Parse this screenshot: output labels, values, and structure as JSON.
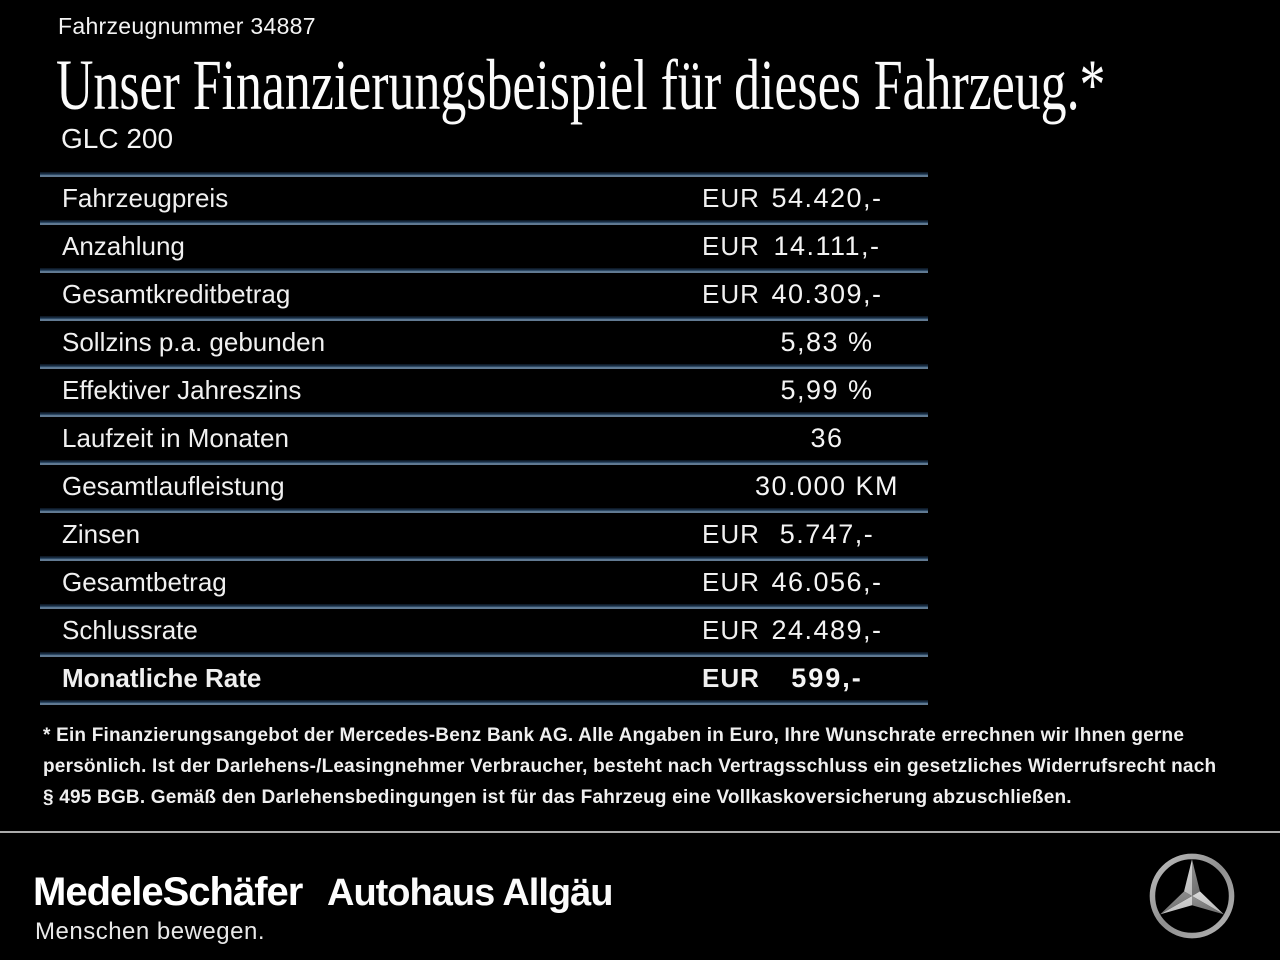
{
  "header": {
    "vehicle_number": "Fahrzeugnummer 34887",
    "title": "Unser Finanzierungsbeispiel für dieses Fahrzeug.*",
    "model": "GLC 200"
  },
  "table": {
    "rows": [
      {
        "label": "Fahrzeugpreis",
        "currency": "EUR",
        "value": "54.420,-",
        "bold": false
      },
      {
        "label": "Anzahlung",
        "currency": "EUR",
        "value": "14.111,-",
        "bold": false
      },
      {
        "label": "Gesamtkreditbetrag",
        "currency": "EUR",
        "value": "40.309,-",
        "bold": false
      },
      {
        "label": "Sollzins p.a. gebunden",
        "currency": "",
        "value": "5,83 %",
        "bold": false
      },
      {
        "label": "Effektiver Jahreszins",
        "currency": "",
        "value": "5,99 %",
        "bold": false
      },
      {
        "label": "Laufzeit in Monaten",
        "currency": "",
        "value": "36",
        "bold": false
      },
      {
        "label": "Gesamtlaufleistung",
        "currency": "",
        "value": "30.000 KM",
        "bold": false
      },
      {
        "label": "Zinsen",
        "currency": "EUR",
        "value": "5.747,-",
        "bold": false
      },
      {
        "label": "Gesamtbetrag",
        "currency": "EUR",
        "value": "46.056,-",
        "bold": false
      },
      {
        "label": "Schlussrate",
        "currency": "EUR",
        "value": "24.489,-",
        "bold": false
      },
      {
        "label": "Monatliche Rate",
        "currency": "EUR",
        "value": "599,-",
        "bold": true
      }
    ]
  },
  "footnote": {
    "lines": [
      "* Ein Finanzierungsangebot der Mercedes-Benz Bank AG. Alle Angaben in Euro, Ihre Wunschrate errechnen wir Ihnen gerne",
      "persönlich. Ist der Darlehens-/Leasingnehmer Verbraucher, besteht nach Vertragsschluss ein gesetzliches Widerrufsrecht nach",
      "§ 495 BGB. Gemäß den Darlehensbedingungen ist für das Fahrzeug eine Vollkaskoversicherung abzuschließen."
    ]
  },
  "footer": {
    "dealer_logo": "MedeleSchäfer",
    "dealer_tagline": "Menschen bewegen.",
    "dealer_logo_2": "Autohaus Allgäu",
    "brand_icon": "mercedes-benz-star-icon"
  },
  "colors": {
    "background": "#000000",
    "text": "#f2f2f2",
    "separator_light": "#7b93a9",
    "separator_dark": "#16283c",
    "footer_divider": "#ababab"
  }
}
